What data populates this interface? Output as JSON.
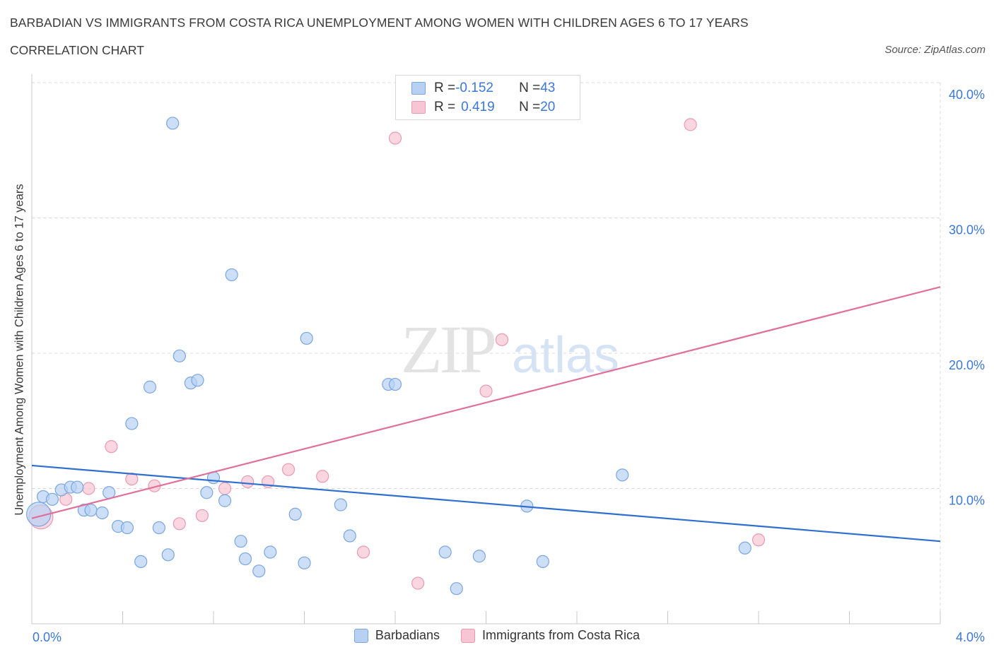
{
  "header": {
    "title": "BARBADIAN VS IMMIGRANTS FROM COSTA RICA UNEMPLOYMENT AMONG WOMEN WITH CHILDREN AGES 6 TO 17 YEARS",
    "subtitle": "CORRELATION CHART",
    "source": "Source: ZipAtlas.com"
  },
  "legend": {
    "rows": [
      {
        "r_label": "R = ",
        "r_value": "-0.152",
        "n_label": "N = ",
        "n_value": "43"
      },
      {
        "r_label": "R = ",
        "r_value": "0.419",
        "n_label": "N = ",
        "n_value": "20"
      }
    ],
    "bottom": [
      "Barbadians",
      "Immigrants from Costa Rica"
    ]
  },
  "watermark": {
    "zip": "ZIP",
    "atlas": "atlas"
  },
  "colors": {
    "blue_fill": "#b8d1f3",
    "blue_stroke": "#7aa6e2",
    "blue_line": "#2f6fd0",
    "pink_fill": "#f7c5d3",
    "pink_stroke": "#e99ab2",
    "pink_line": "#e0709a",
    "axis_label": "#3b78d8",
    "grid": "#d8d8d8"
  },
  "chart_data": {
    "type": "scatter",
    "title": "BARBADIAN VS IMMIGRANTS FROM COSTA RICA UNEMPLOYMENT AMONG WOMEN WITH CHILDREN AGES 6 TO 17 YEARS",
    "xlabel": "",
    "ylabel": "Unemployment Among Women with Children Ages 6 to 17 years",
    "xlim": [
      0,
      4.0
    ],
    "ylim": [
      0,
      40
    ],
    "x_tick_labels": [
      "0.0%",
      "4.0%"
    ],
    "y_ticks": [
      10,
      20,
      30,
      40
    ],
    "y_tick_labels": [
      "10.0%",
      "20.0%",
      "30.0%",
      "40.0%"
    ],
    "grid": true,
    "legend_position": "top-center",
    "series": [
      {
        "name": "Barbadians",
        "r": -0.152,
        "n": 43,
        "trend": {
          "x": [
            0.0,
            4.0
          ],
          "y": [
            11.7,
            6.1
          ]
        },
        "points": [
          {
            "x": 0.03,
            "y": 8.1,
            "big": true
          },
          {
            "x": 0.05,
            "y": 9.4
          },
          {
            "x": 0.09,
            "y": 9.2
          },
          {
            "x": 0.13,
            "y": 9.9
          },
          {
            "x": 0.17,
            "y": 10.1
          },
          {
            "x": 0.2,
            "y": 10.1
          },
          {
            "x": 0.23,
            "y": 8.4
          },
          {
            "x": 0.26,
            "y": 8.4
          },
          {
            "x": 0.31,
            "y": 8.2
          },
          {
            "x": 0.34,
            "y": 9.7
          },
          {
            "x": 0.38,
            "y": 7.2
          },
          {
            "x": 0.42,
            "y": 7.1
          },
          {
            "x": 0.44,
            "y": 14.8
          },
          {
            "x": 0.48,
            "y": 4.6
          },
          {
            "x": 0.52,
            "y": 17.5
          },
          {
            "x": 0.56,
            "y": 7.1
          },
          {
            "x": 0.6,
            "y": 5.1
          },
          {
            "x": 0.62,
            "y": 37.0
          },
          {
            "x": 0.65,
            "y": 19.8
          },
          {
            "x": 0.7,
            "y": 17.8
          },
          {
            "x": 0.73,
            "y": 18.0
          },
          {
            "x": 0.77,
            "y": 9.7
          },
          {
            "x": 0.8,
            "y": 10.8
          },
          {
            "x": 0.85,
            "y": 9.1
          },
          {
            "x": 0.88,
            "y": 25.8
          },
          {
            "x": 0.92,
            "y": 6.1
          },
          {
            "x": 0.94,
            "y": 4.8
          },
          {
            "x": 1.0,
            "y": 3.9
          },
          {
            "x": 1.05,
            "y": 5.3
          },
          {
            "x": 1.16,
            "y": 8.1
          },
          {
            "x": 1.2,
            "y": 4.5
          },
          {
            "x": 1.21,
            "y": 21.1
          },
          {
            "x": 1.36,
            "y": 8.8
          },
          {
            "x": 1.4,
            "y": 6.5
          },
          {
            "x": 1.57,
            "y": 17.7
          },
          {
            "x": 1.6,
            "y": 17.7
          },
          {
            "x": 1.82,
            "y": 5.3
          },
          {
            "x": 1.87,
            "y": 2.6
          },
          {
            "x": 1.97,
            "y": 5.0
          },
          {
            "x": 2.18,
            "y": 8.7
          },
          {
            "x": 2.25,
            "y": 4.6
          },
          {
            "x": 2.6,
            "y": 11.0
          },
          {
            "x": 3.14,
            "y": 5.6
          }
        ]
      },
      {
        "name": "Immigrants from Costa Rica",
        "r": 0.419,
        "n": 20,
        "trend": {
          "x": [
            0.0,
            4.0
          ],
          "y": [
            7.8,
            24.9
          ]
        },
        "points": [
          {
            "x": 0.04,
            "y": 7.9,
            "big": true
          },
          {
            "x": 0.15,
            "y": 9.2
          },
          {
            "x": 0.25,
            "y": 10.0
          },
          {
            "x": 0.35,
            "y": 13.1
          },
          {
            "x": 0.44,
            "y": 10.7
          },
          {
            "x": 0.54,
            "y": 10.2
          },
          {
            "x": 0.65,
            "y": 7.4
          },
          {
            "x": 0.75,
            "y": 8.0
          },
          {
            "x": 0.85,
            "y": 10.0
          },
          {
            "x": 0.95,
            "y": 10.5
          },
          {
            "x": 1.04,
            "y": 10.5
          },
          {
            "x": 1.13,
            "y": 11.4
          },
          {
            "x": 1.28,
            "y": 10.9
          },
          {
            "x": 1.46,
            "y": 5.3
          },
          {
            "x": 1.6,
            "y": 35.9
          },
          {
            "x": 1.7,
            "y": 3.0
          },
          {
            "x": 2.0,
            "y": 17.2
          },
          {
            "x": 2.07,
            "y": 21.0
          },
          {
            "x": 2.9,
            "y": 36.9
          },
          {
            "x": 3.2,
            "y": 6.2
          }
        ]
      }
    ]
  }
}
